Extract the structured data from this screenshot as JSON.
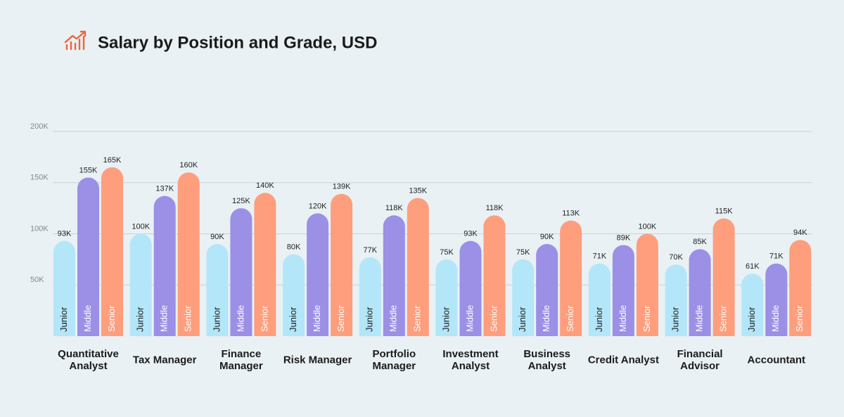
{
  "chart_data": {
    "type": "bar",
    "title": "Salary by Position and Grade, USD",
    "categories": [
      "Quantitative Analyst",
      "Tax Manager",
      "Finance Manager",
      "Risk Manager",
      "Portfolio Manager",
      "Investment Analyst",
      "Business Analyst",
      "Credit Analyst",
      "Financial Advisor",
      "Accountant"
    ],
    "series": [
      {
        "name": "Junior",
        "color": "#b3e6f8",
        "values": [
          93000,
          100000,
          90000,
          80000,
          77000,
          75000,
          75000,
          71000,
          70000,
          61000
        ],
        "value_labels": [
          "93K",
          "100K",
          "90K",
          "80K",
          "77K",
          "75K",
          "75K",
          "71K",
          "70K",
          "61K"
        ]
      },
      {
        "name": "Middle",
        "color": "#9b8fe6",
        "values": [
          155000,
          137000,
          125000,
          120000,
          118000,
          93000,
          90000,
          89000,
          85000,
          71000
        ],
        "value_labels": [
          "155K",
          "137K",
          "125K",
          "120K",
          "118K",
          "93K",
          "90K",
          "89K",
          "85K",
          "71K"
        ]
      },
      {
        "name": "Senior",
        "color": "#fe9e7d",
        "values": [
          165000,
          160000,
          140000,
          139000,
          135000,
          118000,
          113000,
          100000,
          115000,
          94000
        ],
        "value_labels": [
          "165K",
          "160K",
          "140K",
          "139K",
          "135K",
          "118K",
          "113K",
          "100K",
          "115K",
          "94K"
        ]
      }
    ],
    "ylim": [
      0,
      200000
    ],
    "yticks": [
      {
        "value": 50000,
        "label": "50K"
      },
      {
        "value": 100000,
        "label": "100K"
      },
      {
        "value": 150000,
        "label": "150K"
      },
      {
        "value": 200000,
        "label": "200K"
      }
    ],
    "grid": true
  }
}
